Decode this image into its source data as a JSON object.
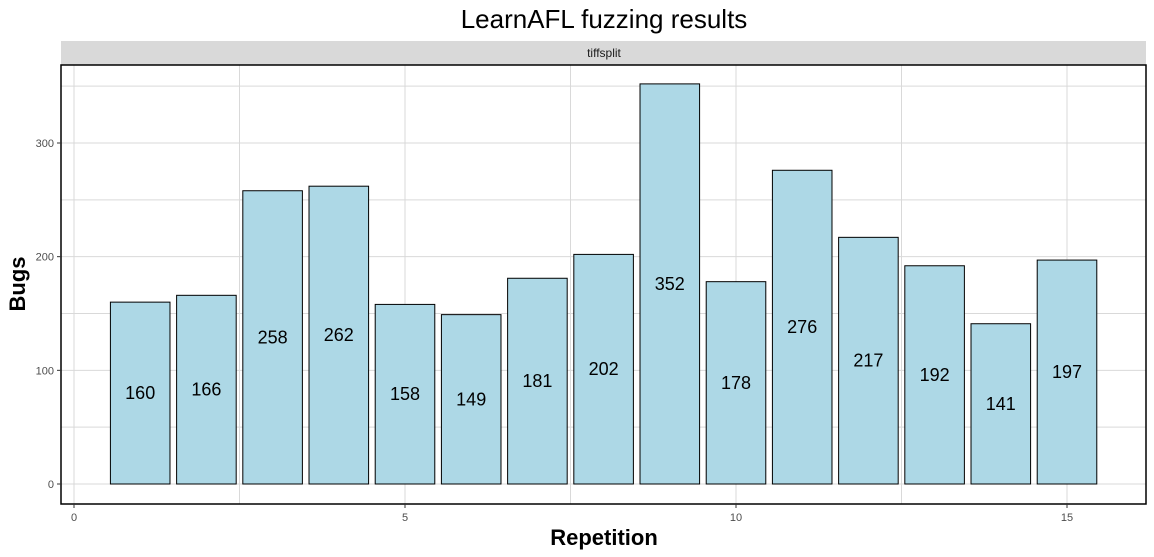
{
  "chart_data": {
    "type": "bar",
    "title": "LearnAFL fuzzing results",
    "facet_label": "tiffsplit",
    "xlabel": "Repetition",
    "ylabel": "Bugs",
    "x": [
      1,
      2,
      3,
      4,
      5,
      6,
      7,
      8,
      9,
      10,
      11,
      12,
      13,
      14,
      15
    ],
    "values": [
      160,
      166,
      258,
      262,
      158,
      149,
      181,
      202,
      352,
      178,
      276,
      217,
      192,
      141,
      197
    ],
    "xlim": [
      0,
      16.2
    ],
    "ylim": [
      0,
      370
    ],
    "x_ticks": [
      "0",
      "5",
      "10",
      "15"
    ],
    "y_ticks": [
      "0",
      "100",
      "200",
      "300"
    ],
    "bar_color": "#add8e6",
    "bar_border_color": "#000000",
    "grid": true,
    "legend": "none"
  }
}
